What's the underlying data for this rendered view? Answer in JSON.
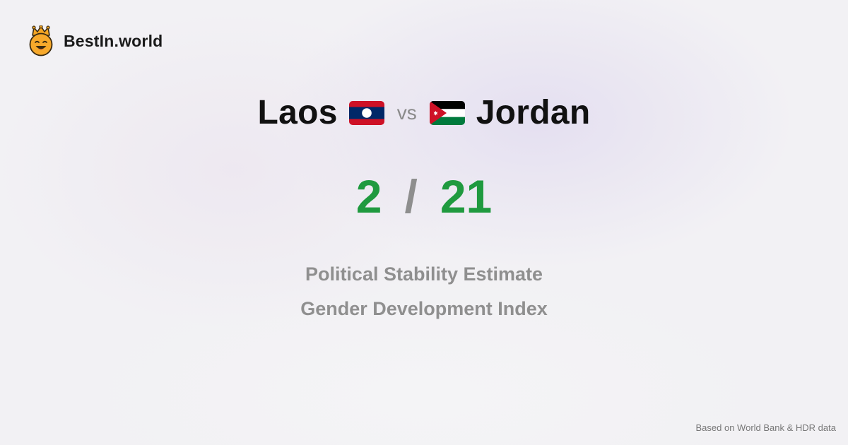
{
  "brand": {
    "name": "BestIn.world",
    "logo_icon": "crowned-smiley-icon"
  },
  "comparison": {
    "left_country": "Laos",
    "left_flag_icon": "laos-flag-icon",
    "vs_label": "vs",
    "right_country": "Jordan",
    "right_flag_icon": "jordan-flag-icon"
  },
  "scores": {
    "left": "2",
    "separator": "/",
    "right": "21"
  },
  "metrics": [
    "Political Stability Estimate",
    "Gender Development Index"
  ],
  "footer": {
    "source": "Based on World Bank & HDR data"
  },
  "colors": {
    "score": "#1f9a3f",
    "muted": "#8f8f8f",
    "laos_red": "#ce1126",
    "laos_blue": "#002868",
    "jordan_red": "#ce1126",
    "jordan_green": "#007a3d"
  }
}
